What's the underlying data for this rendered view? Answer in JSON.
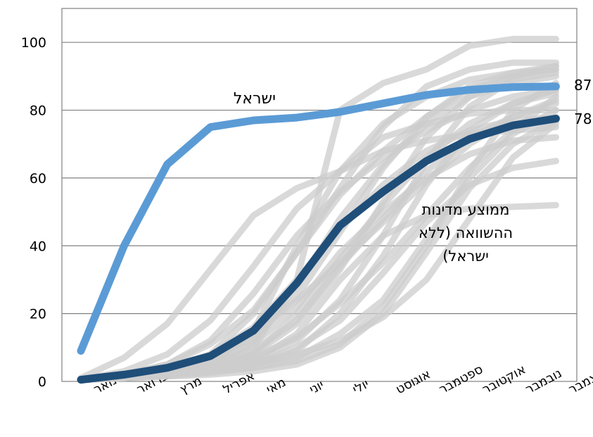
{
  "chart_data": {
    "type": "line",
    "categories": [
      "ינואר",
      "פברואר",
      "מרץ",
      "אפריל",
      "מאי",
      "יוני",
      "יולי",
      "אוגוסט",
      "ספטמבר",
      "אוקטובר",
      "נובמבר",
      "דצמבר"
    ],
    "ylim": [
      0,
      100
    ],
    "y_ticks": [
      "0",
      "20",
      "40",
      "60",
      "80",
      "100"
    ],
    "grid": "horizontal",
    "legend": "none",
    "series": [
      {
        "name": "ישראל",
        "color": "#5b9bd5",
        "values": [
          9,
          40,
          64,
          75,
          77,
          77.8,
          79.5,
          82,
          84.5,
          86,
          86.8,
          87
        ]
      },
      {
        "name": "ממוצע מדינות ההשוואה (ללא ישראל)",
        "color": "#1f4e79",
        "values": [
          0.5,
          2,
          4,
          7.5,
          15,
          29,
          46,
          56,
          65,
          71.5,
          75.5,
          77.5
        ]
      }
    ],
    "background_series": {
      "color": "#cccccc",
      "lines": [
        [
          1,
          7,
          17,
          33,
          49,
          57,
          62,
          68,
          71,
          73,
          74,
          75
        ],
        [
          0.5,
          3,
          8,
          18,
          34,
          51,
          62,
          72,
          76,
          79,
          80,
          80
        ],
        [
          0.5,
          2,
          5,
          11,
          21,
          38,
          57,
          75,
          87,
          92,
          94,
          94
        ],
        [
          0.5,
          1,
          3,
          7,
          13,
          25,
          44,
          63,
          78,
          87,
          91,
          93
        ],
        [
          0.5,
          1,
          2,
          4,
          8,
          17,
          33,
          53,
          72,
          84,
          90,
          92
        ],
        [
          0.5,
          1,
          2,
          3,
          6,
          12,
          24,
          43,
          65,
          81,
          89,
          91
        ],
        [
          0.5,
          1,
          2,
          3,
          5,
          9,
          20,
          37,
          58,
          74,
          82,
          86
        ],
        [
          0.5,
          1,
          1.5,
          2.5,
          4,
          7,
          14,
          24,
          42,
          60,
          73,
          80
        ],
        [
          0.5,
          1,
          1.5,
          2,
          3,
          5,
          10,
          20,
          38,
          57,
          70,
          77
        ],
        [
          0.5,
          1,
          2,
          3,
          5,
          10,
          18,
          32,
          47,
          58,
          63,
          65
        ],
        [
          0.5,
          1,
          2,
          3,
          6,
          14,
          30,
          43,
          49,
          51,
          51.5,
          52
        ],
        [
          0.5,
          1,
          2,
          4,
          10,
          30,
          80,
          88,
          92,
          99,
          101,
          101
        ],
        [
          0.5,
          1,
          2,
          5,
          15,
          40,
          62,
          76,
          84,
          89,
          91,
          92
        ],
        [
          0.5,
          1,
          2,
          4,
          12,
          28,
          48,
          64,
          76,
          84,
          88,
          90
        ],
        [
          0.5,
          1,
          2,
          3,
          8,
          20,
          36,
          52,
          66,
          76,
          82,
          85
        ],
        [
          0.5,
          2,
          4,
          8,
          16,
          30,
          45,
          58,
          68,
          74,
          77,
          78
        ],
        [
          0.5,
          1.5,
          3,
          6,
          11,
          22,
          38,
          50,
          60,
          67,
          71,
          72
        ],
        [
          0.5,
          1,
          2,
          5,
          9,
          18,
          34,
          48,
          62,
          72,
          78,
          82
        ],
        [
          0.5,
          1,
          3,
          8,
          20,
          38,
          55,
          68,
          78,
          86,
          90,
          93
        ],
        [
          0.5,
          1,
          2,
          6,
          14,
          24,
          35,
          47,
          59,
          70,
          78,
          83
        ],
        [
          0.5,
          1,
          2,
          4,
          7,
          13,
          23,
          35,
          49,
          63,
          74,
          84
        ],
        [
          0.5,
          1,
          2,
          3,
          4,
          6,
          11,
          22,
          40,
          62,
          80,
          88
        ],
        [
          0.5,
          2,
          5,
          12,
          26,
          43,
          56,
          66,
          74,
          80,
          84,
          86
        ],
        [
          0.5,
          1,
          2,
          3,
          5,
          8,
          12,
          19,
          30,
          48,
          66,
          76
        ]
      ]
    },
    "annotations": {
      "israel_label": "ישראל",
      "avg_label_lines": [
        "ממוצע מדינות",
        "ההשוואה (ללא",
        "ישראל)"
      ],
      "israel_end_value": "87",
      "avg_end_value": "78"
    }
  }
}
